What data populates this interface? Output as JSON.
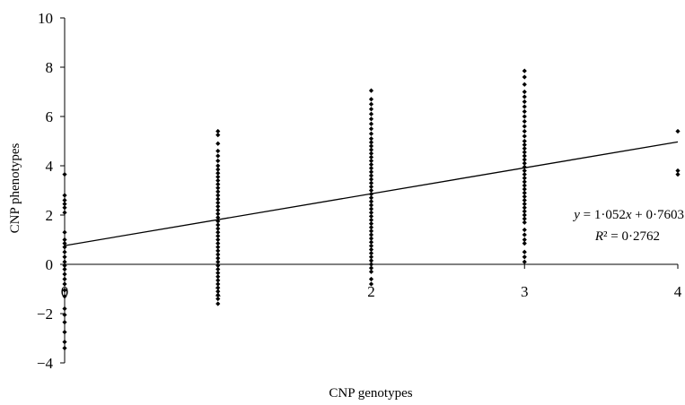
{
  "chart_data": {
    "type": "scatter",
    "xlabel": "CNP genotypes",
    "ylabel": "CNP phenotypes",
    "xlim": [
      0,
      4
    ],
    "ylim": [
      -4,
      10
    ],
    "x_ticks": [
      "0",
      "1",
      "2",
      "3",
      "4"
    ],
    "y_ticks": [
      "−4",
      "−2",
      "0",
      "2",
      "4",
      "6",
      "8",
      "10"
    ],
    "grid": false,
    "legend": "none",
    "trendline": {
      "slope": 1.052,
      "intercept": 0.7603,
      "equation": [
        "y",
        " = 1·052",
        "x",
        " + 0·7603"
      ],
      "r2": [
        "R",
        "² = 0·2762"
      ]
    },
    "series": [
      {
        "points": [
          {
            "x": 0,
            "values": [
              3.65,
              2.8,
              2.6,
              2.45,
              2.3,
              2.1,
              1.3,
              1.0,
              0.85,
              0.7,
              0.5,
              0.3,
              0.1,
              -0.05,
              -0.2,
              -0.4,
              -0.6,
              -0.8,
              -1.05,
              -1.3,
              -1.8,
              -2.05,
              -2.35,
              -2.75,
              -3.15,
              -3.4
            ]
          },
          {
            "x": 1,
            "values": [
              5.4,
              5.25,
              4.9,
              4.6,
              4.4,
              4.2,
              4.0,
              3.85,
              3.7,
              3.55,
              3.4,
              3.25,
              3.1,
              2.95,
              2.8,
              2.65,
              2.5,
              2.35,
              2.2,
              2.05,
              1.9,
              1.75,
              1.6,
              1.45,
              1.3,
              1.15,
              1.0,
              0.85,
              0.7,
              0.55,
              0.4,
              0.25,
              0.1,
              -0.05,
              -0.2,
              -0.35,
              -0.5,
              -0.65,
              -0.8,
              -0.95,
              -1.1,
              -1.25,
              -1.4,
              -1.6
            ]
          },
          {
            "x": 2,
            "values": [
              7.05,
              6.7,
              6.5,
              6.3,
              6.1,
              5.9,
              5.7,
              5.5,
              5.3,
              5.1,
              4.95,
              4.8,
              4.65,
              4.5,
              4.35,
              4.2,
              4.05,
              3.9,
              3.75,
              3.6,
              3.45,
              3.3,
              3.15,
              3.0,
              2.85,
              2.7,
              2.55,
              2.4,
              2.25,
              2.1,
              1.95,
              1.8,
              1.65,
              1.5,
              1.35,
              1.2,
              1.05,
              0.9,
              0.75,
              0.6,
              0.45,
              0.3,
              0.15,
              0.0,
              -0.15,
              -0.3,
              -0.6,
              -0.8
            ]
          },
          {
            "x": 3,
            "values": [
              7.85,
              7.6,
              7.3,
              7.0,
              6.8,
              6.6,
              6.4,
              6.2,
              6.0,
              5.8,
              5.6,
              5.4,
              5.2,
              5.0,
              4.85,
              4.7,
              4.55,
              4.4,
              4.25,
              4.1,
              3.95,
              3.8,
              3.65,
              3.5,
              3.35,
              3.2,
              3.05,
              2.9,
              2.75,
              2.6,
              2.45,
              2.3,
              2.15,
              2.0,
              1.85,
              1.7,
              1.4,
              1.2,
              1.0,
              0.85,
              0.5,
              0.3,
              0.1
            ]
          },
          {
            "x": 4,
            "values": [
              5.4,
              3.8,
              3.65
            ]
          }
        ]
      }
    ]
  }
}
